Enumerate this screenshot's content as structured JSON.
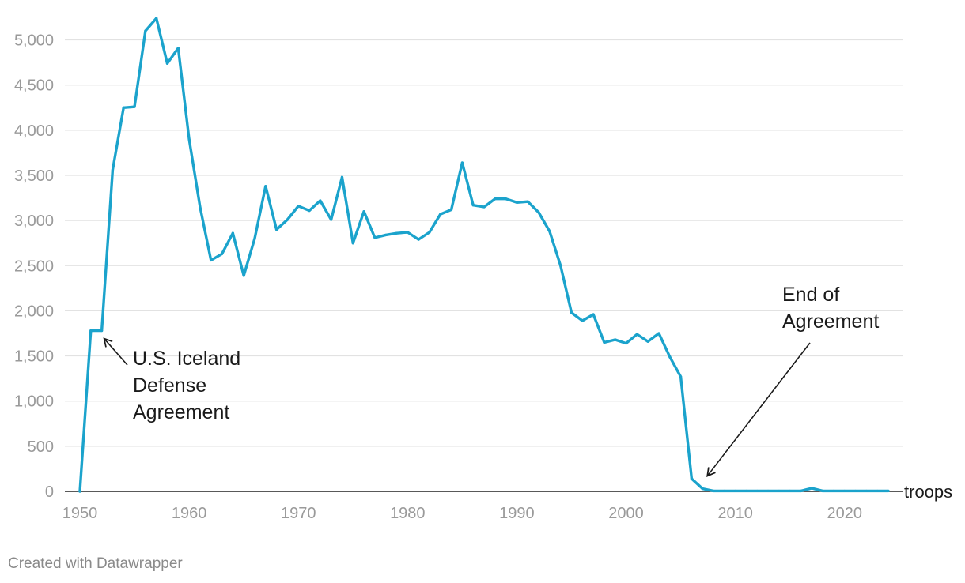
{
  "chart_data": {
    "type": "line",
    "title": "",
    "xlabel": "",
    "ylabel": "",
    "unit_label": "troops",
    "xlim": [
      1950,
      2024
    ],
    "ylim": [
      0,
      5250
    ],
    "x_ticks": [
      1950,
      1960,
      1970,
      1980,
      1990,
      2000,
      2010,
      2020
    ],
    "x_tick_labels": [
      "1950",
      "1960",
      "1970",
      "1980",
      "1990",
      "2000",
      "2010",
      "2020"
    ],
    "y_ticks": [
      0,
      500,
      1000,
      1500,
      2000,
      2500,
      3000,
      3500,
      4000,
      4500,
      5000
    ],
    "y_tick_labels": [
      "0",
      "500",
      "1,000",
      "1,500",
      "2,000",
      "2,500",
      "3,000",
      "3,500",
      "4,000",
      "4,500",
      "5,000"
    ],
    "grid": true,
    "line_color": "#1ba3cc",
    "series": [
      {
        "x": [
          1950,
          1951,
          1952,
          1953,
          1954,
          1955,
          1956,
          1957,
          1958,
          1959,
          1960,
          1961,
          1962,
          1963,
          1964,
          1965,
          1966,
          1967,
          1968,
          1969,
          1970,
          1971,
          1972,
          1973,
          1974,
          1975,
          1976,
          1977,
          1978,
          1979,
          1980,
          1981,
          1982,
          1983,
          1984,
          1985,
          1986,
          1987,
          1988,
          1989,
          1990,
          1991,
          1992,
          1993,
          1994,
          1995,
          1996,
          1997,
          1998,
          1999,
          2000,
          2001,
          2002,
          2003,
          2004,
          2005,
          2006,
          2007,
          2008,
          2009,
          2010,
          2011,
          2012,
          2013,
          2014,
          2015,
          2016,
          2017,
          2018,
          2019,
          2020,
          2021,
          2022,
          2023,
          2024
        ],
        "values": [
          0,
          1780,
          1780,
          3560,
          4250,
          4260,
          5100,
          5240,
          4740,
          4910,
          3900,
          3150,
          2560,
          2630,
          2860,
          2390,
          2800,
          3380,
          2900,
          3010,
          3160,
          3110,
          3220,
          3010,
          3480,
          2750,
          3100,
          2810,
          2840,
          2860,
          2870,
          2790,
          2870,
          3070,
          3120,
          3640,
          3170,
          3150,
          3240,
          3240,
          3200,
          3210,
          3090,
          2880,
          2500,
          1980,
          1890,
          1960,
          1650,
          1680,
          1640,
          1740,
          1660,
          1750,
          1490,
          1270,
          140,
          30,
          5,
          5,
          5,
          5,
          5,
          5,
          5,
          5,
          5,
          35,
          5,
          5,
          5,
          5,
          5,
          5,
          5
        ]
      }
    ],
    "annotations": [
      {
        "lines": [
          "U.S. Iceland",
          "Defense",
          "Agreement"
        ],
        "x": 1952,
        "y": 1780
      },
      {
        "lines": [
          "End of",
          "Agreement"
        ],
        "x": 2007,
        "y": 30
      }
    ]
  },
  "footer": "Created with Datawrapper"
}
